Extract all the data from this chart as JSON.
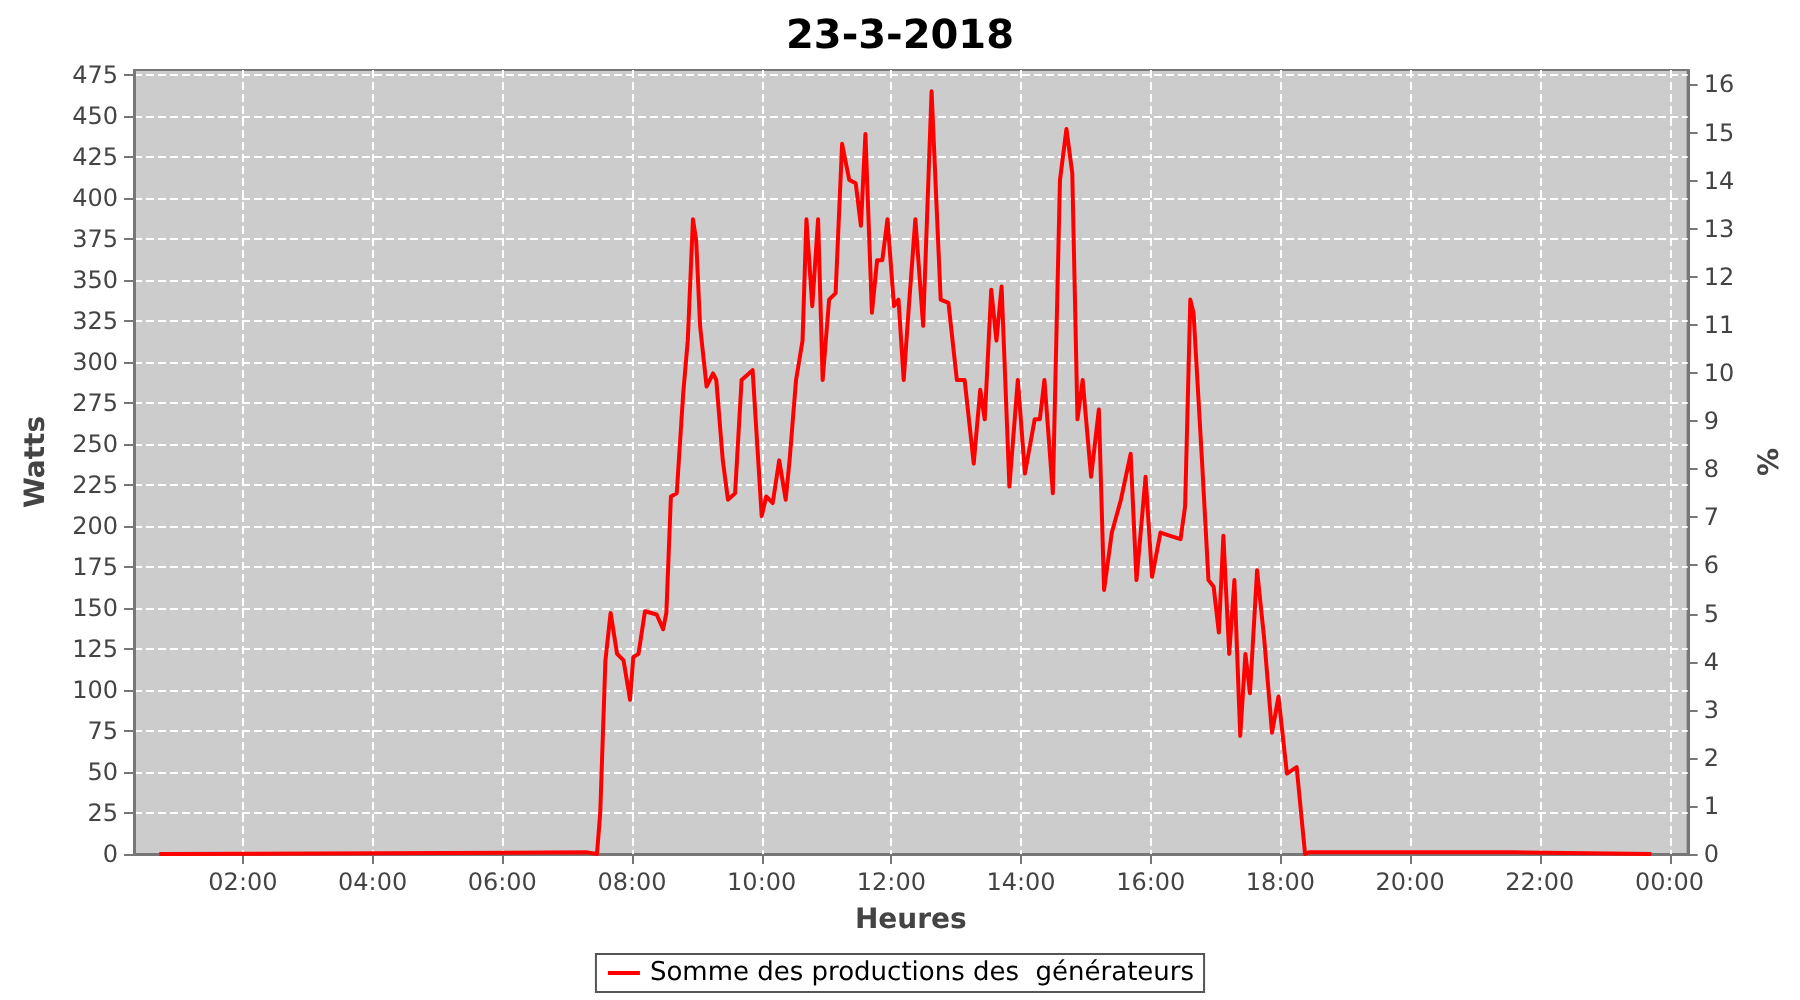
{
  "chart_data": {
    "type": "line",
    "title": "23-3-2018",
    "xlabel": "Heures",
    "ylabel": "Watts",
    "y2label": "%",
    "x": [
      0.71,
      7.31,
      7.46,
      7.51,
      7.59,
      7.67,
      7.77,
      7.87,
      7.97,
      8.02,
      8.1,
      8.2,
      8.38,
      8.48,
      8.53,
      8.6,
      8.69,
      8.79,
      8.86,
      8.94,
      8.99,
      9.05,
      9.15,
      9.25,
      9.3,
      9.4,
      9.48,
      9.59,
      9.69,
      9.86,
      10.0,
      10.07,
      10.17,
      10.27,
      10.37,
      10.43,
      10.53,
      10.63,
      10.69,
      10.78,
      10.87,
      10.94,
      11.04,
      11.14,
      11.24,
      11.35,
      11.45,
      11.53,
      11.6,
      11.7,
      11.78,
      11.86,
      11.94,
      12.04,
      12.11,
      12.19,
      12.27,
      12.37,
      12.49,
      12.62,
      12.76,
      12.88,
      13.01,
      13.13,
      13.27,
      13.37,
      13.44,
      13.54,
      13.62,
      13.7,
      13.82,
      13.95,
      14.06,
      14.21,
      14.29,
      14.36,
      14.49,
      14.6,
      14.7,
      14.79,
      14.87,
      14.95,
      15.08,
      15.2,
      15.28,
      15.4,
      15.54,
      15.69,
      15.78,
      15.92,
      16.02,
      16.15,
      16.3,
      16.46,
      16.53,
      16.61,
      16.66,
      16.79,
      16.89,
      16.97,
      17.05,
      17.12,
      17.21,
      17.29,
      17.38,
      17.46,
      17.53,
      17.64,
      17.75,
      17.87,
      17.97,
      18.1,
      18.25,
      18.38,
      18.44,
      19.73,
      21.57,
      23.72
    ],
    "series": [
      {
        "name": "Somme des productions des  générateurs",
        "color": "#ff0000",
        "values": [
          0,
          1,
          0,
          25,
          118,
          147,
          122,
          118,
          94,
          120,
          122,
          148,
          146,
          137,
          147,
          218,
          220,
          281,
          313,
          387,
          374,
          322,
          285,
          293,
          289,
          240,
          216,
          220,
          289,
          295,
          206,
          218,
          214,
          240,
          216,
          240,
          289,
          313,
          387,
          334,
          387,
          289,
          338,
          342,
          433,
          411,
          409,
          383,
          439,
          330,
          362,
          362,
          387,
          334,
          338,
          289,
          334,
          387,
          322,
          465,
          338,
          336,
          289,
          289,
          238,
          283,
          265,
          344,
          313,
          346,
          224,
          289,
          232,
          265,
          265,
          289,
          220,
          411,
          442,
          415,
          265,
          289,
          230,
          271,
          161,
          196,
          216,
          244,
          167,
          230,
          169,
          196,
          194,
          192,
          212,
          338,
          330,
          240,
          167,
          163,
          135,
          194,
          122,
          167,
          72,
          122,
          98,
          173,
          131,
          74,
          96,
          49,
          53,
          0,
          1,
          1,
          1,
          0
        ]
      }
    ],
    "xlim": [
      0.32,
      24.28
    ],
    "xticks": [
      {
        "value": 2,
        "label": "02:00"
      },
      {
        "value": 4,
        "label": "04:00"
      },
      {
        "value": 6,
        "label": "06:00"
      },
      {
        "value": 8,
        "label": "08:00"
      },
      {
        "value": 10,
        "label": "10:00"
      },
      {
        "value": 12,
        "label": "12:00"
      },
      {
        "value": 14,
        "label": "14:00"
      },
      {
        "value": 16,
        "label": "16:00"
      },
      {
        "value": 18,
        "label": "18:00"
      },
      {
        "value": 20,
        "label": "20:00"
      },
      {
        "value": 22,
        "label": "22:00"
      },
      {
        "value": 24,
        "label": "00:00"
      }
    ],
    "ylim": [
      0,
      478
    ],
    "yticks": [
      0,
      25,
      50,
      75,
      100,
      125,
      150,
      175,
      200,
      225,
      250,
      275,
      300,
      325,
      350,
      375,
      400,
      425,
      450,
      475
    ],
    "y2lim": [
      0,
      16.3
    ],
    "y2ticks": [
      0,
      1,
      2,
      3,
      4,
      5,
      6,
      7,
      8,
      9,
      10,
      11,
      12,
      13,
      14,
      15,
      16
    ],
    "grid": true,
    "legend": "bottom"
  }
}
